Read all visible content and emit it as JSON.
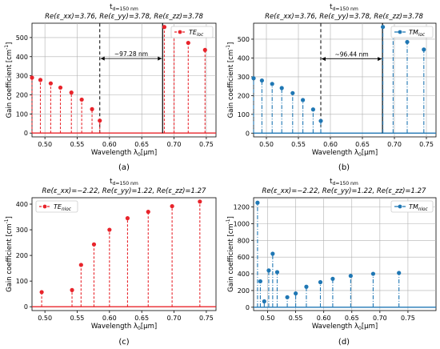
{
  "chart_data": [
    {
      "type": "stem",
      "label": "(a)",
      "title_line1": "t_d=150 nm",
      "title_line2": "Re(ε_xx)=3.76, Re(ε_yy)=3.78, Re(ε_zz)=3.78",
      "xlabel": "Wavelength λ_0[μm]",
      "ylabel": "Gain coefficient [cm^-1]",
      "xlim": [
        0.48,
        0.765
      ],
      "ylim": [
        -20,
        575
      ],
      "xticks": [
        0.5,
        0.55,
        0.6,
        0.65,
        0.7,
        0.75
      ],
      "xtick_labels": [
        "0.50",
        "0.55",
        "0.60",
        "0.65",
        "0.70",
        "0.75"
      ],
      "yticks": [
        0,
        100,
        200,
        300,
        400,
        500
      ],
      "ytick_labels": [
        "0",
        "100",
        "200",
        "300",
        "400",
        "500"
      ],
      "grid": true,
      "legend": "TE_loc",
      "legend_position": "top-right",
      "color": "#e8242b",
      "line_style": "dashed",
      "marker": "circle",
      "x": [
        0.48,
        0.493,
        0.509,
        0.524,
        0.541,
        0.557,
        0.573,
        0.585,
        0.685,
        0.7,
        0.722,
        0.748
      ],
      "y": [
        290,
        278,
        260,
        238,
        212,
        175,
        125,
        65,
        555,
        518,
        472,
        435
      ],
      "annotation": {
        "text": "~97.28 nm",
        "x_start": 0.585,
        "x_end": 0.6823,
        "y": 390,
        "line_top": 575
      }
    },
    {
      "type": "stem",
      "label": "(b)",
      "title_line1": "t_d=150 nm",
      "title_line2": "Re(ε_xx)=3.76, Re(ε_yy)=3.78, Re(ε_zz)=3.78",
      "xlabel": "Wavelength λ_0[μm]",
      "ylabel": "Gain coefficient [cm^-1]",
      "xlim": [
        0.48,
        0.765
      ],
      "ylim": [
        -20,
        585
      ],
      "xticks": [
        0.5,
        0.55,
        0.6,
        0.65,
        0.7,
        0.75
      ],
      "xtick_labels": [
        "0.50",
        "0.55",
        "0.60",
        "0.65",
        "0.70",
        "0.75"
      ],
      "yticks": [
        0,
        100,
        200,
        300,
        400,
        500
      ],
      "ytick_labels": [
        "0",
        "100",
        "200",
        "300",
        "400",
        "500"
      ],
      "grid": true,
      "legend": "TM_loc",
      "legend_position": "top-right",
      "color": "#1f77b4",
      "line_style": "dashdot",
      "marker": "circle",
      "x": [
        0.48,
        0.493,
        0.509,
        0.524,
        0.541,
        0.557,
        0.573,
        0.585,
        0.682,
        0.698,
        0.72,
        0.746
      ],
      "y": [
        292,
        280,
        262,
        240,
        213,
        176,
        126,
        65,
        565,
        530,
        485,
        445
      ],
      "annotation": {
        "text": "~96.44 nm",
        "x_start": 0.585,
        "x_end": 0.6814,
        "y": 395,
        "line_top": 585
      }
    },
    {
      "type": "stem",
      "label": "(c)",
      "title_line1": "t_d=150 nm",
      "title_line2": "Re(ε_xx)=−2.22, Re(ε_yy)=1.22, Re(ε_zz)=1.27",
      "xlabel": "Wavelength λ_0[μm]",
      "ylabel": "Gain coefficient [cm^-1]",
      "xlim": [
        0.48,
        0.765
      ],
      "ylim": [
        -15,
        425
      ],
      "xticks": [
        0.5,
        0.55,
        0.6,
        0.65,
        0.7,
        0.75
      ],
      "xtick_labels": [
        "0.50",
        "0.55",
        "0.60",
        "0.65",
        "0.70",
        "0.75"
      ],
      "yticks": [
        0,
        100,
        200,
        300,
        400
      ],
      "ytick_labels": [
        "0",
        "100",
        "200",
        "300",
        "400"
      ],
      "grid": false,
      "legend": "TE_nloc",
      "legend_position": "top-left",
      "color": "#e8242b",
      "line_style": "dashed",
      "marker": "circle",
      "x": [
        0.495,
        0.542,
        0.556,
        0.576,
        0.6,
        0.628,
        0.66,
        0.697,
        0.74
      ],
      "y": [
        57,
        65,
        163,
        243,
        300,
        345,
        370,
        392,
        410
      ]
    },
    {
      "type": "stem",
      "label": "(d)",
      "title_line1": "t_d=150 nm",
      "title_line2": "Re(ε_xx)=−2.22, Re(ε_yy)=1.22, Re(ε_zz)=1.27",
      "xlabel": "Wavelength λ_0[μm]",
      "ylabel": "Gain coefficient [cm^-1]",
      "xlim": [
        0.475,
        0.8
      ],
      "ylim": [
        -40,
        1310
      ],
      "xticks": [
        0.5,
        0.55,
        0.6,
        0.65,
        0.7,
        0.75
      ],
      "xtick_labels": [
        "0.50",
        "0.55",
        "0.60",
        "0.65",
        "0.70",
        "0.75"
      ],
      "yticks": [
        0,
        200,
        400,
        600,
        800,
        1000,
        1200
      ],
      "ytick_labels": [
        "0",
        "200",
        "400",
        "600",
        "800",
        "1000",
        "1200"
      ],
      "grid": true,
      "legend": "TM_nloc",
      "legend_position": "top-right",
      "color": "#1f77b4",
      "line_style": "dashdot",
      "marker": "circle",
      "x": [
        0.482,
        0.487,
        0.494,
        0.502,
        0.509,
        0.517,
        0.535,
        0.55,
        0.569,
        0.594,
        0.616,
        0.648,
        0.688,
        0.734
      ],
      "y": [
        1250,
        310,
        70,
        440,
        640,
        420,
        120,
        165,
        245,
        300,
        340,
        375,
        400,
        410
      ]
    }
  ]
}
